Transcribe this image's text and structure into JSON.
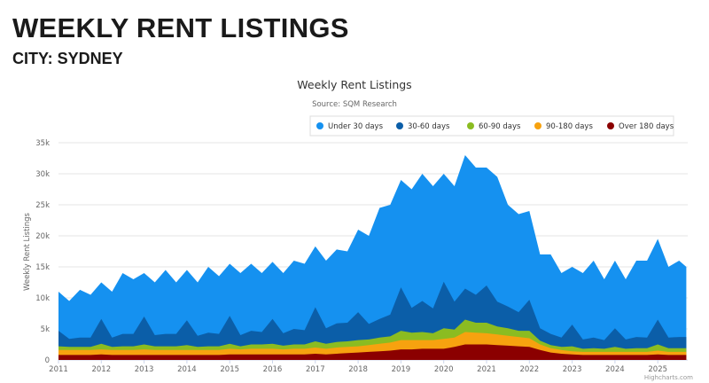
{
  "header": {
    "title": "WEEKLY RENT LISTINGS",
    "subtitle": "CITY: SYDNEY"
  },
  "chart_data": {
    "type": "area",
    "stacked": true,
    "title": "Weekly Rent Listings",
    "subtitle": "Source: SQM Research",
    "ylabel": "Weekly Rent Listings",
    "xlabel": "",
    "ylim": [
      0,
      35000
    ],
    "yticks": [
      "0",
      "5k",
      "10k",
      "15k",
      "20k",
      "25k",
      "30k",
      "35k"
    ],
    "xticks": [
      "2011",
      "2012",
      "2013",
      "2014",
      "2015",
      "2016",
      "2017",
      "2018",
      "2019",
      "2020",
      "2021",
      "2022",
      "2023",
      "2024",
      "2025"
    ],
    "grid": true,
    "legend": "top-right",
    "credit": "Highcharts.com",
    "x": [
      "2011-01",
      "2011-04",
      "2011-07",
      "2011-10",
      "2012-01",
      "2012-04",
      "2012-07",
      "2012-10",
      "2013-01",
      "2013-04",
      "2013-07",
      "2013-10",
      "2014-01",
      "2014-04",
      "2014-07",
      "2014-10",
      "2015-01",
      "2015-04",
      "2015-07",
      "2015-10",
      "2016-01",
      "2016-04",
      "2016-07",
      "2016-10",
      "2017-01",
      "2017-04",
      "2017-07",
      "2017-10",
      "2018-01",
      "2018-04",
      "2018-07",
      "2018-10",
      "2019-01",
      "2019-04",
      "2019-07",
      "2019-10",
      "2020-01",
      "2020-04",
      "2020-07",
      "2020-10",
      "2021-01",
      "2021-04",
      "2021-07",
      "2021-10",
      "2022-01",
      "2022-04",
      "2022-07",
      "2022-10",
      "2023-01",
      "2023-04",
      "2023-07",
      "2023-10",
      "2024-01",
      "2024-04",
      "2024-07",
      "2024-10",
      "2025-01",
      "2025-04",
      "2025-07",
      "2025-09"
    ],
    "series": [
      {
        "name": "Under 30 days",
        "color": "#1591f0",
        "values": [
          6300,
          6100,
          7700,
          6900,
          5900,
          7400,
          9800,
          8800,
          7000,
          8500,
          10300,
          8300,
          8100,
          8600,
          10600,
          9300,
          8400,
          10000,
          10800,
          9500,
          9200,
          9700,
          11000,
          10700,
          9800,
          10900,
          11900,
          11500,
          13300,
          14200,
          17900,
          17700,
          17300,
          19100,
          20500,
          19700,
          17400,
          18600,
          21500,
          20500,
          19000,
          20100,
          16400,
          15800,
          14300,
          11900,
          12800,
          10400,
          9300,
          10700,
          12400,
          9800,
          10900,
          9700,
          12300,
          12400,
          13000,
          11400,
          12300,
          11300
        ]
      },
      {
        "name": "30-60 days",
        "color": "#0b5ea8",
        "values": [
          2500,
          1300,
          1500,
          1500,
          4000,
          1500,
          2000,
          2000,
          4500,
          1800,
          2000,
          2000,
          4000,
          1800,
          2200,
          2000,
          4500,
          1800,
          2200,
          2000,
          4000,
          2000,
          2500,
          2300,
          5500,
          2500,
          3000,
          3000,
          4500,
          2500,
          3000,
          3500,
          7000,
          4000,
          5000,
          4000,
          7500,
          4500,
          5000,
          4500,
          6000,
          4000,
          3500,
          3000,
          5000,
          2000,
          1800,
          1500,
          3500,
          1500,
          1700,
          1400,
          3000,
          1500,
          1800,
          1700,
          4000,
          1700,
          1800,
          1800
        ]
      },
      {
        "name": "60-90 days",
        "color": "#8bbc21",
        "values": [
          600,
          500,
          500,
          500,
          900,
          500,
          600,
          600,
          800,
          600,
          600,
          600,
          800,
          500,
          600,
          600,
          800,
          500,
          700,
          700,
          800,
          600,
          700,
          700,
          1000,
          800,
          900,
          900,
          1000,
          900,
          1000,
          1000,
          1500,
          1200,
          1300,
          1100,
          1700,
          1300,
          2000,
          1600,
          1700,
          1300,
          1200,
          1000,
          1200,
          600,
          500,
          500,
          800,
          500,
          600,
          500,
          800,
          500,
          600,
          600,
          1000,
          600,
          600,
          600
        ]
      },
      {
        "name": "90-180 days",
        "color": "#f7a20f",
        "values": [
          800,
          800,
          800,
          800,
          800,
          800,
          800,
          800,
          900,
          800,
          800,
          800,
          800,
          800,
          800,
          800,
          900,
          800,
          900,
          900,
          900,
          800,
          900,
          900,
          1000,
          900,
          1000,
          1000,
          1000,
          1100,
          1200,
          1300,
          1500,
          1500,
          1400,
          1400,
          1600,
          1500,
          2000,
          1900,
          1800,
          1700,
          1600,
          1500,
          1400,
          900,
          700,
          600,
          500,
          500,
          500,
          500,
          500,
          500,
          500,
          500,
          600,
          500,
          500,
          500
        ]
      },
      {
        "name": "Over 180 days",
        "color": "#8b0000",
        "values": [
          800,
          800,
          800,
          800,
          900,
          800,
          800,
          800,
          800,
          800,
          800,
          800,
          800,
          800,
          800,
          800,
          900,
          900,
          900,
          900,
          900,
          900,
          900,
          900,
          1000,
          900,
          1000,
          1100,
          1200,
          1300,
          1400,
          1500,
          1700,
          1700,
          1800,
          1800,
          1800,
          2100,
          2500,
          2500,
          2500,
          2400,
          2300,
          2200,
          2100,
          1600,
          1200,
          1000,
          900,
          800,
          800,
          800,
          800,
          800,
          800,
          800,
          900,
          800,
          800,
          800
        ]
      }
    ]
  }
}
